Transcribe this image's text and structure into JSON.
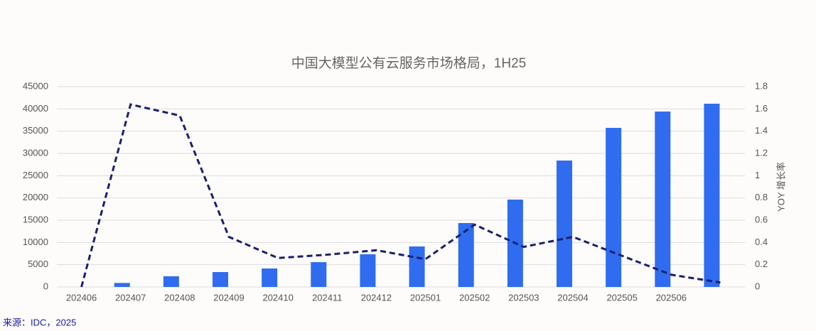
{
  "chart_data": {
    "type": "bar_line",
    "title": "中国大模型公有云服务市场格局，1H25",
    "y2label": "YOY 增长率",
    "source": "来源：IDC，2025",
    "categories": [
      "202406",
      "202407",
      "202408",
      "202409",
      "202410",
      "202411",
      "202412",
      "202501",
      "202502",
      "202503",
      "202504",
      "202505",
      "202506",
      null
    ],
    "series": [
      {
        "type": "bar",
        "color": "#2f6cf0",
        "values": [
          null,
          900,
          2400,
          3350,
          4150,
          5580,
          7340,
          9100,
          14360,
          19630,
          28400,
          35740,
          39410,
          41170
        ]
      },
      {
        "type": "line",
        "axis": "y2",
        "color": "#1a1f6e",
        "dashed": true,
        "values": [
          0,
          1.64,
          1.54,
          0.45,
          0.26,
          0.29,
          0.33,
          0.25,
          0.56,
          0.36,
          0.45,
          0.28,
          0.11,
          0.04
        ]
      }
    ],
    "ylim": [
      0,
      45000
    ],
    "yticks": [
      0,
      5000,
      10000,
      15000,
      20000,
      25000,
      30000,
      35000,
      40000,
      45000
    ],
    "y2lim": [
      0,
      1.8
    ],
    "y2ticks": [
      0,
      0.2,
      0.4,
      0.6,
      0.8,
      1,
      1.2,
      1.4,
      1.6,
      1.8
    ],
    "grid": true
  }
}
